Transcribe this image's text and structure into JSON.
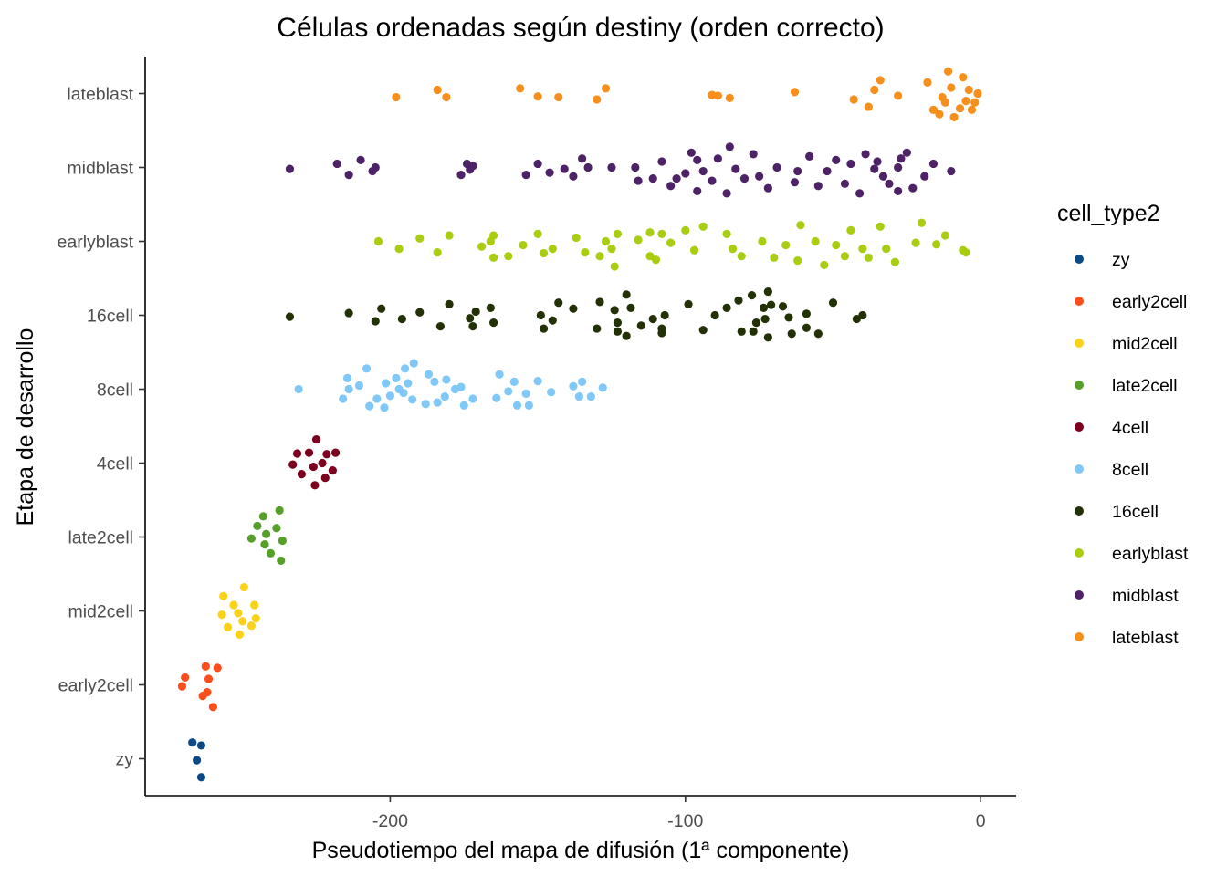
{
  "chart_data": {
    "type": "scatter",
    "title": "Células ordenadas según destiny (orden correcto)",
    "xlabel": "Pseudotiempo del mapa de difusión (1ª componente)",
    "ylabel": "Etapa de desarrollo",
    "xlim": [
      -283,
      12
    ],
    "x_ticks": [
      -200,
      -100,
      0
    ],
    "x_tick_labels": [
      "-200",
      "-100",
      "0"
    ],
    "categories": [
      "zy",
      "early2cell",
      "mid2cell",
      "late2cell",
      "4cell",
      "8cell",
      "16cell",
      "earlyblast",
      "midblast",
      "lateblast"
    ],
    "grid": false,
    "legend": {
      "title": "cell_type2",
      "position": "right",
      "entries": [
        "zy",
        "early2cell",
        "mid2cell",
        "late2cell",
        "4cell",
        "8cell",
        "16cell",
        "earlyblast",
        "midblast",
        "lateblast"
      ]
    },
    "series": [
      {
        "name": "zy",
        "color": "#0b4a84",
        "points": [
          [
            -264,
            0.25
          ],
          [
            -265.5,
            0.02
          ],
          [
            -264,
            -0.18
          ],
          [
            -267,
            -0.22
          ]
        ]
      },
      {
        "name": "early2cell",
        "color": "#fc4e1c",
        "points": [
          [
            -260,
            0.3
          ],
          [
            -263.5,
            0.15
          ],
          [
            -262,
            0.1
          ],
          [
            -270.5,
            0.02
          ],
          [
            -261.5,
            -0.08
          ],
          [
            -269.5,
            -0.1
          ],
          [
            -258.5,
            -0.23
          ],
          [
            -262.5,
            -0.25
          ]
        ]
      },
      {
        "name": "mid2cell",
        "color": "#fad219",
        "points": [
          [
            -251,
            0.32
          ],
          [
            -255,
            0.22
          ],
          [
            -247,
            0.2
          ],
          [
            -250,
            0.14
          ],
          [
            -245.5,
            0.1
          ],
          [
            -257,
            0.05
          ],
          [
            -251.5,
            0.03
          ],
          [
            -253,
            -0.08
          ],
          [
            -246,
            -0.08
          ],
          [
            -256.5,
            -0.2
          ],
          [
            -249.5,
            -0.32
          ]
        ]
      },
      {
        "name": "late2cell",
        "color": "#55a028",
        "points": [
          [
            -237,
            0.32
          ],
          [
            -240.5,
            0.22
          ],
          [
            -242.5,
            0.1
          ],
          [
            -236.5,
            0.05
          ],
          [
            -247,
            0.02
          ],
          [
            -242,
            -0.04
          ],
          [
            -245,
            -0.15
          ],
          [
            -238.5,
            -0.12
          ],
          [
            -243,
            -0.28
          ],
          [
            -237.5,
            -0.36
          ]
        ]
      },
      {
        "name": "4cell",
        "color": "#7c001e",
        "points": [
          [
            -225.5,
            0.3
          ],
          [
            -222,
            0.2
          ],
          [
            -230,
            0.15
          ],
          [
            -219.5,
            0.1
          ],
          [
            -226,
            0.05
          ],
          [
            -233,
            0.02
          ],
          [
            -223,
            0
          ],
          [
            -231.5,
            -0.13
          ],
          [
            -227.5,
            -0.14
          ],
          [
            -221.5,
            -0.12
          ],
          [
            -218.5,
            -0.14
          ],
          [
            -225,
            -0.32
          ]
        ]
      },
      {
        "name": "8cell",
        "color": "#7fc8f8",
        "points": [
          [
            -231,
            0
          ],
          [
            -216,
            0.13
          ],
          [
            -214,
            0
          ],
          [
            -210.5,
            -0.05
          ],
          [
            -208,
            -0.28
          ],
          [
            -214.5,
            -0.15
          ],
          [
            -204.5,
            0.13
          ],
          [
            -200,
            0.09
          ],
          [
            -207,
            0.23
          ],
          [
            -201.5,
            -0.08
          ],
          [
            -195.5,
            0.05
          ],
          [
            -198,
            -0.15
          ],
          [
            -195,
            -0.28
          ],
          [
            -192,
            -0.35
          ],
          [
            -185,
            -0.1
          ],
          [
            -181.5,
            0.1
          ],
          [
            -178,
            0
          ],
          [
            -172,
            0.13
          ],
          [
            -163,
            -0.2
          ],
          [
            -160,
            0.03
          ],
          [
            -154,
            0.06
          ],
          [
            -150,
            -0.11
          ],
          [
            -145.5,
            0.04
          ],
          [
            -138,
            -0.04
          ],
          [
            -135,
            -0.1
          ],
          [
            -132,
            0.1
          ],
          [
            -128,
            -0.02
          ],
          [
            -136,
            0.1
          ],
          [
            -176,
            -0.03
          ],
          [
            -184,
            0.18
          ],
          [
            -188,
            0.2
          ],
          [
            -192.5,
            0.14
          ],
          [
            -202,
            0.25
          ],
          [
            -175,
            0.22
          ],
          [
            -197,
            0
          ],
          [
            -157,
            0.22
          ],
          [
            -153,
            0.22
          ],
          [
            -158,
            -0.1
          ],
          [
            -164,
            0.12
          ],
          [
            -187,
            -0.2
          ],
          [
            -181,
            -0.13
          ],
          [
            -194,
            -0.08
          ]
        ]
      },
      {
        "name": "16cell",
        "color": "#233206",
        "points": [
          [
            -234,
            0.02
          ],
          [
            -214,
            -0.03
          ],
          [
            -205,
            0.08
          ],
          [
            -203,
            -0.09
          ],
          [
            -196,
            0.05
          ],
          [
            -190,
            -0.04
          ],
          [
            -183,
            0.15
          ],
          [
            -180,
            -0.15
          ],
          [
            -172,
            0.15
          ],
          [
            -173,
            0.04
          ],
          [
            -171,
            -0.05
          ],
          [
            -166,
            -0.1
          ],
          [
            -165,
            0.1
          ],
          [
            -148,
            0.18
          ],
          [
            -149,
            0
          ],
          [
            -145,
            0.07
          ],
          [
            -143,
            -0.17
          ],
          [
            -138,
            -0.09
          ],
          [
            -129,
            -0.18
          ],
          [
            -130,
            0.18
          ],
          [
            -123,
            0.1
          ],
          [
            -124,
            -0.07
          ],
          [
            -120,
            0.28
          ],
          [
            -118.5,
            -0.1
          ],
          [
            -120,
            -0.28
          ],
          [
            -115,
            0.14
          ],
          [
            -111,
            0.05
          ],
          [
            -108,
            0.18
          ],
          [
            -107,
            0
          ],
          [
            -94,
            0.2
          ],
          [
            -90,
            0
          ],
          [
            -86,
            -0.1
          ],
          [
            -82,
            -0.2
          ],
          [
            -77,
            0.22
          ],
          [
            -72,
            0.3
          ],
          [
            -73,
            0.05
          ],
          [
            -76,
            0.1
          ],
          [
            -73.5,
            -0.1
          ],
          [
            -71,
            -0.14
          ],
          [
            -67,
            -0.12
          ],
          [
            -65,
            0.03
          ],
          [
            -64,
            0.25
          ],
          [
            -59,
            -0.02
          ],
          [
            -59,
            0.17
          ],
          [
            -55,
            0.25
          ],
          [
            -50,
            -0.17
          ],
          [
            -42,
            0.05
          ],
          [
            -40,
            0
          ],
          [
            -99,
            -0.15
          ],
          [
            -77.5,
            -0.27
          ],
          [
            -72,
            -0.32
          ],
          [
            -81,
            0.22
          ],
          [
            -108,
            0.24
          ],
          [
            -123,
            0.22
          ]
        ]
      },
      {
        "name": "earlyblast",
        "color": "#a9cd10",
        "points": [
          [
            -204,
            0
          ],
          [
            -197,
            0.1
          ],
          [
            -190,
            -0.04
          ],
          [
            -180,
            -0.08
          ],
          [
            -169,
            0.07
          ],
          [
            -166,
            0
          ],
          [
            -160,
            0.2
          ],
          [
            -155,
            0.05
          ],
          [
            -150,
            -0.1
          ],
          [
            -145,
            0.1
          ],
          [
            -137,
            -0.05
          ],
          [
            -129,
            0.2
          ],
          [
            -127,
            0
          ],
          [
            -125,
            0.1
          ],
          [
            -123,
            -0.1
          ],
          [
            -116,
            -0.02
          ],
          [
            -112,
            0.2
          ],
          [
            -110,
            0.25
          ],
          [
            -108,
            -0.1
          ],
          [
            -105,
            0.02
          ],
          [
            -100,
            -0.15
          ],
          [
            -97,
            0.12
          ],
          [
            -94,
            -0.2
          ],
          [
            -86,
            -0.1
          ],
          [
            -84,
            0.1
          ],
          [
            -81,
            0.2
          ],
          [
            -74,
            0
          ],
          [
            -70,
            0.22
          ],
          [
            -66,
            0.05
          ],
          [
            -61,
            -0.22
          ],
          [
            -56,
            0
          ],
          [
            -53,
            0.32
          ],
          [
            -49,
            0.05
          ],
          [
            -46,
            0.2
          ],
          [
            -44,
            -0.15
          ],
          [
            -40,
            0.1
          ],
          [
            -34,
            -0.2
          ],
          [
            -32,
            0.1
          ],
          [
            -29,
            0.28
          ],
          [
            -22,
            0.02
          ],
          [
            -20,
            -0.25
          ],
          [
            -15,
            0.04
          ],
          [
            -12,
            -0.08
          ],
          [
            -6,
            0.12
          ],
          [
            -5,
            0.15
          ],
          [
            -38,
            0.22
          ],
          [
            -62,
            0.26
          ],
          [
            -124,
            0.34
          ],
          [
            -134,
            0.15
          ],
          [
            -165,
            0.22
          ],
          [
            -184,
            0.15
          ],
          [
            -165,
            -0.08
          ],
          [
            -148,
            0.16
          ],
          [
            -112,
            -0.12
          ]
        ]
      },
      {
        "name": "midblast",
        "color": "#4e2266",
        "points": [
          [
            -234,
            0.02
          ],
          [
            -218,
            -0.05
          ],
          [
            -214,
            0.1
          ],
          [
            -210,
            -0.1
          ],
          [
            -206,
            0.05
          ],
          [
            -205,
            0
          ],
          [
            -176,
            0.1
          ],
          [
            -174,
            -0.05
          ],
          [
            -173,
            0.03
          ],
          [
            -172,
            -0.02
          ],
          [
            -154,
            0.1
          ],
          [
            -150,
            -0.05
          ],
          [
            -146,
            0.07
          ],
          [
            -141,
            0.02
          ],
          [
            -138,
            0.12
          ],
          [
            -135,
            -0.12
          ],
          [
            -125,
            0
          ],
          [
            -117,
            0
          ],
          [
            -111,
            0.15
          ],
          [
            -108,
            -0.08
          ],
          [
            -105,
            0.25
          ],
          [
            -103,
            0.15
          ],
          [
            -100,
            0.08
          ],
          [
            -98,
            -0.2
          ],
          [
            -96,
            0.32
          ],
          [
            -94,
            0.05
          ],
          [
            -91,
            0.18
          ],
          [
            -89,
            -0.12
          ],
          [
            -86,
            0.35
          ],
          [
            -83,
            0.02
          ],
          [
            -80,
            0.15
          ],
          [
            -77,
            -0.18
          ],
          [
            -72,
            0.28
          ],
          [
            -69,
            0
          ],
          [
            -62,
            0.05
          ],
          [
            -58,
            -0.15
          ],
          [
            -55,
            0.25
          ],
          [
            -52,
            0.05
          ],
          [
            -49,
            -0.1
          ],
          [
            -46,
            0.22
          ],
          [
            -41,
            0.35
          ],
          [
            -39,
            -0.18
          ],
          [
            -36,
            0.02
          ],
          [
            -35,
            -0.08
          ],
          [
            -33,
            0.12
          ],
          [
            -31,
            0.22
          ],
          [
            -28,
            0
          ],
          [
            -25,
            -0.2
          ],
          [
            -23,
            0.28
          ],
          [
            -19,
            0.12
          ],
          [
            -16,
            -0.05
          ],
          [
            -10,
            0.05
          ],
          [
            -63,
            0.2
          ],
          [
            -85,
            -0.28
          ],
          [
            -116,
            0.18
          ],
          [
            -133,
            0
          ],
          [
            -96,
            -0.1
          ],
          [
            -75,
            0.12
          ],
          [
            -44,
            -0.05
          ],
          [
            -27,
            -0.12
          ],
          [
            -28,
            0.32
          ]
        ]
      },
      {
        "name": "lateblast",
        "color": "#f68f1b",
        "points": [
          [
            -198,
            0.05
          ],
          [
            -184,
            -0.05
          ],
          [
            -181,
            0.05
          ],
          [
            -156,
            -0.07
          ],
          [
            -150,
            0.04
          ],
          [
            -143,
            0.05
          ],
          [
            -130,
            0.08
          ],
          [
            -127,
            -0.07
          ],
          [
            -91,
            0.02
          ],
          [
            -89,
            0.03
          ],
          [
            -85,
            0.06
          ],
          [
            -63,
            -0.02
          ],
          [
            -43,
            0.08
          ],
          [
            -38,
            0.18
          ],
          [
            -36,
            -0.05
          ],
          [
            -34,
            -0.18
          ],
          [
            -28,
            0.03
          ],
          [
            -18,
            -0.15
          ],
          [
            -16,
            0.22
          ],
          [
            -13,
            0.05
          ],
          [
            -11,
            -0.3
          ],
          [
            -10,
            -0.08
          ],
          [
            -9,
            0.32
          ],
          [
            -7,
            0.2
          ],
          [
            -5,
            0.1
          ],
          [
            -4,
            -0.05
          ],
          [
            -2,
            0.12
          ],
          [
            -1,
            0
          ],
          [
            -6,
            -0.22
          ],
          [
            -14,
            0.28
          ],
          [
            -12,
            0.12
          ],
          [
            -3,
            0.22
          ]
        ]
      }
    ]
  }
}
